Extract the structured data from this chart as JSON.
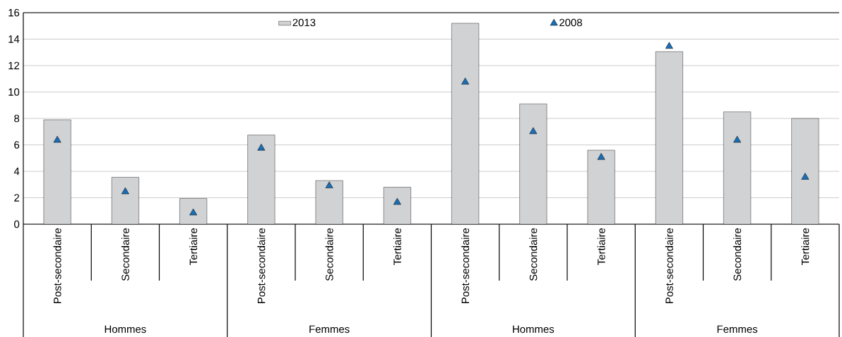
{
  "chart_data": {
    "type": "bar",
    "categories": [
      "Post-secondaire",
      "Secondaire",
      "Tertiaire",
      "Post-secondaire",
      "Secondaire",
      "Tertiaire",
      "Post-secondaire",
      "Secondaire",
      "Tertiaire",
      "Post-secondaire",
      "Secondaire",
      "Tertiaire"
    ],
    "series": [
      {
        "name": "2013",
        "color": "#d0d2d4",
        "values": [
          7.9,
          3.55,
          1.95,
          6.75,
          3.3,
          2.8,
          15.2,
          9.1,
          5.6,
          13.05,
          8.5,
          8.0
        ]
      },
      {
        "name": "2008",
        "type": "scatter",
        "marker": "triangle",
        "color": "#1a6eb4",
        "values": [
          6.35,
          2.45,
          0.85,
          5.75,
          2.9,
          1.65,
          10.75,
          7.0,
          5.05,
          13.45,
          6.35,
          3.55
        ]
      }
    ],
    "annotations": [
      "Hommes",
      "Femmes",
      "Hommes",
      "Femmes"
    ],
    "ylim": [
      0,
      16
    ],
    "yticks": [
      0,
      2,
      4,
      6,
      8,
      10,
      12,
      14,
      16
    ],
    "grid": "y",
    "legend": "top"
  }
}
